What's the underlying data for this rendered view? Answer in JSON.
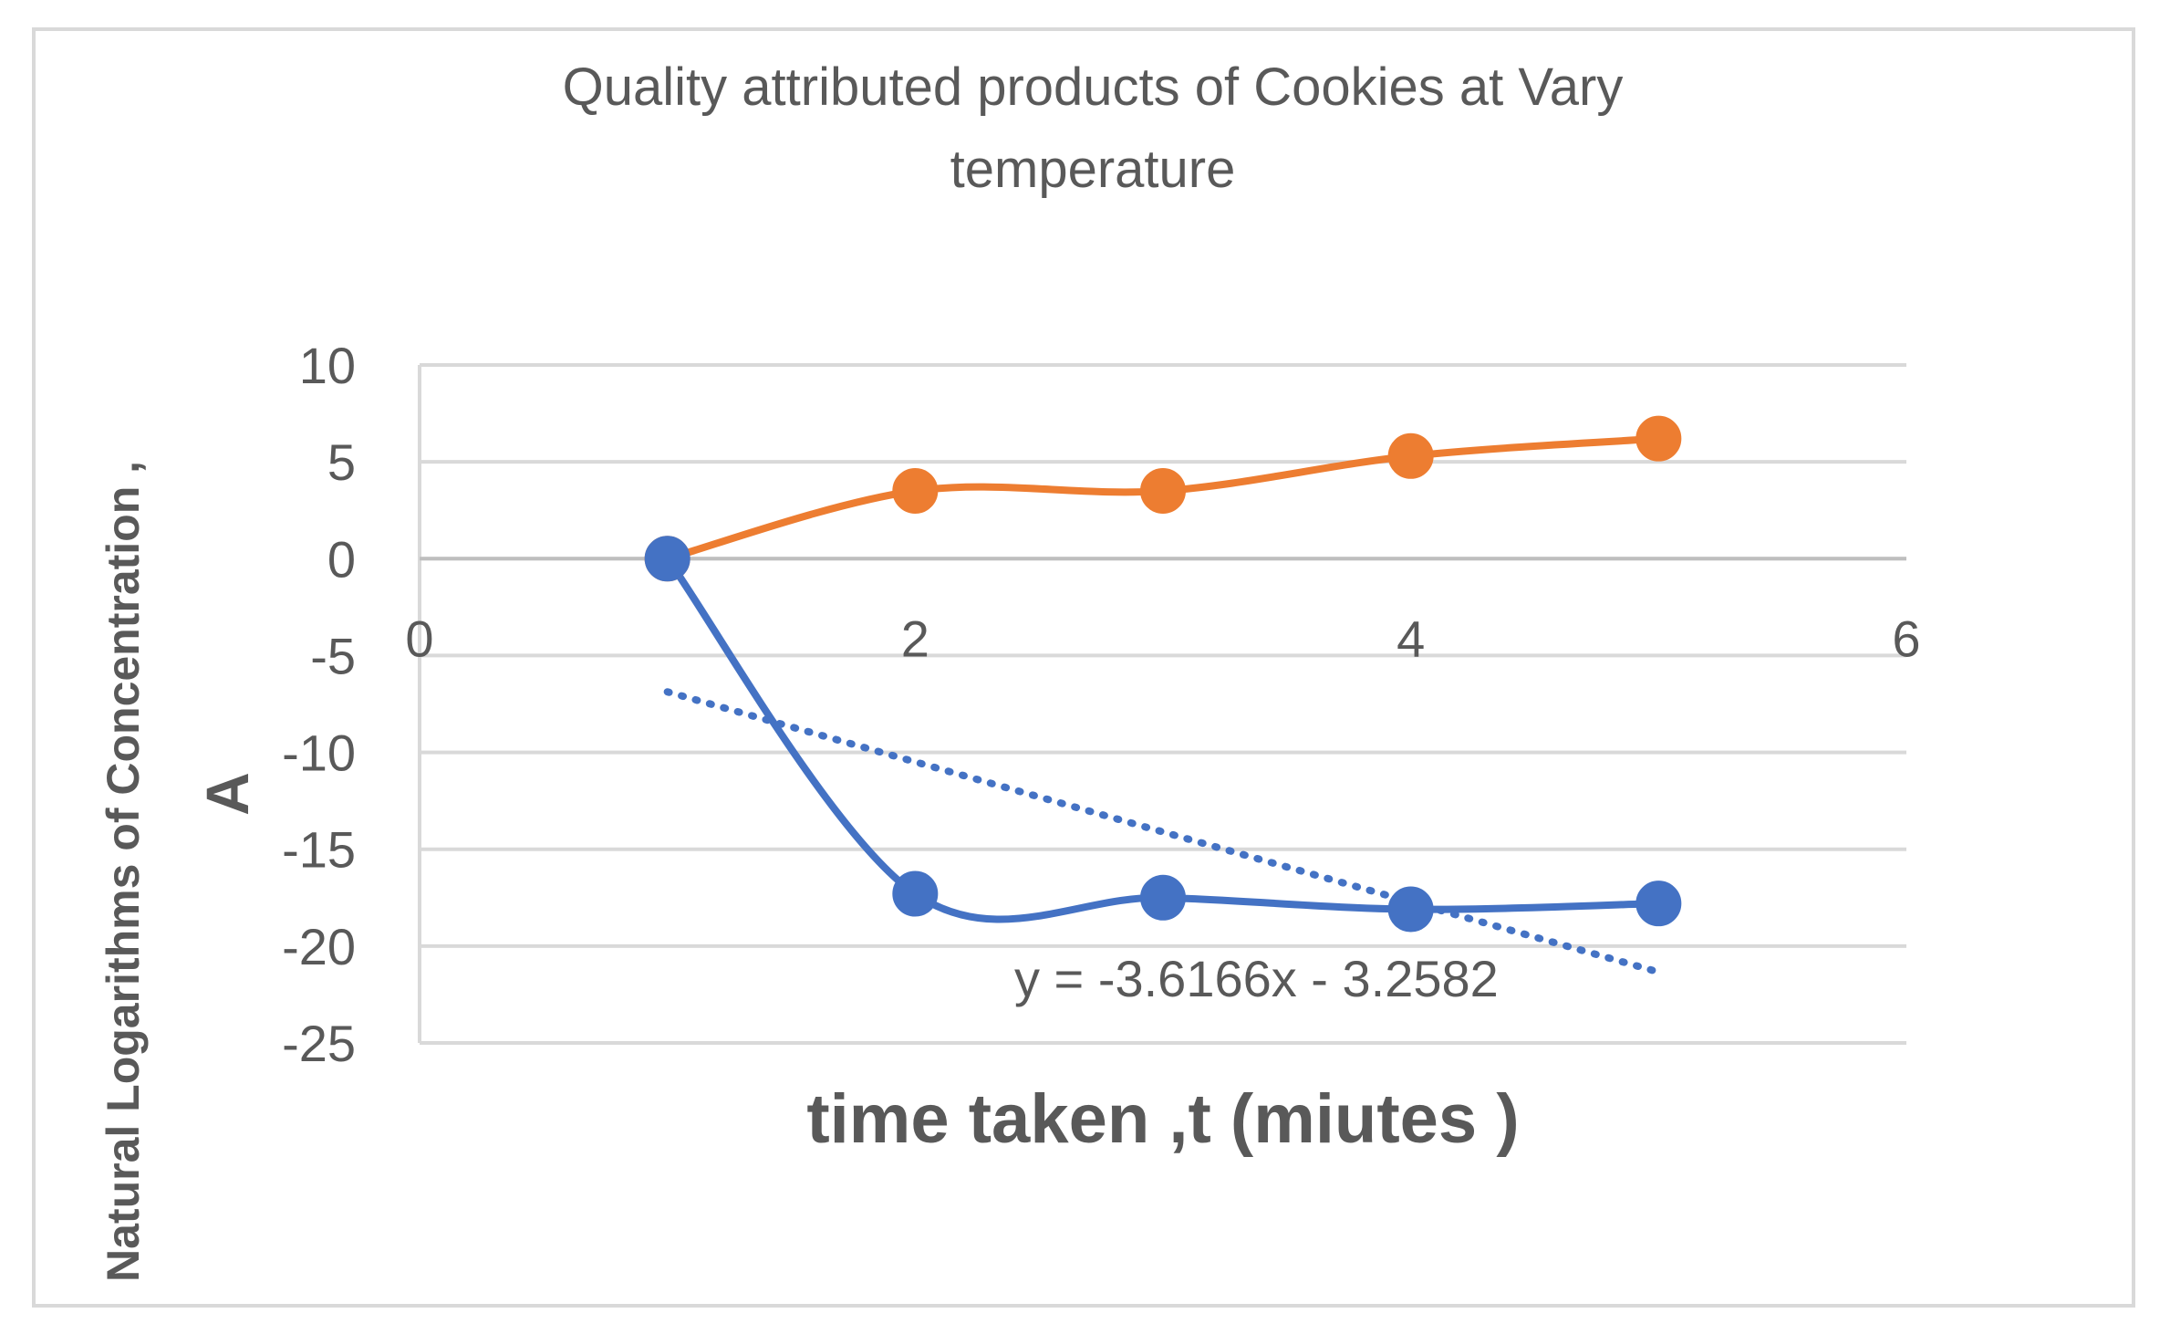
{
  "chart_data": {
    "type": "line",
    "title_line1": "Quality attributed products of Cookies at Vary",
    "title_line2": "temperature",
    "xlabel": "time taken ,t (miutes )",
    "ylabel_line1": "Natural Logarithms of Concentration ,",
    "ylabel_line2": "A",
    "xlim": [
      0,
      6
    ],
    "ylim": [
      -25,
      10
    ],
    "x_ticks": [
      "0",
      "2",
      "4",
      "6"
    ],
    "y_ticks": [
      "10",
      "5",
      "0",
      "-5",
      "-10",
      "-15",
      "-20",
      "-25"
    ],
    "grid": true,
    "series": [
      {
        "color": "#ED7D31",
        "smooth": true,
        "points": [
          [
            1,
            0
          ],
          [
            2,
            3.5
          ],
          [
            3,
            3.5
          ],
          [
            4,
            5.3
          ],
          [
            5,
            6.2
          ]
        ]
      },
      {
        "color": "#4472C4",
        "smooth": true,
        "points": [
          [
            1,
            0
          ],
          [
            2,
            -17.3
          ],
          [
            3,
            -17.5
          ],
          [
            4,
            -18.1
          ],
          [
            5,
            -17.8
          ]
        ]
      }
    ],
    "trendline": {
      "color": "#4472C4",
      "style": "dotted",
      "slope": -3.6166,
      "intercept": -3.2582,
      "x_range": [
        1,
        5
      ],
      "equation": "y = -3.6166x - 3.2582"
    }
  }
}
